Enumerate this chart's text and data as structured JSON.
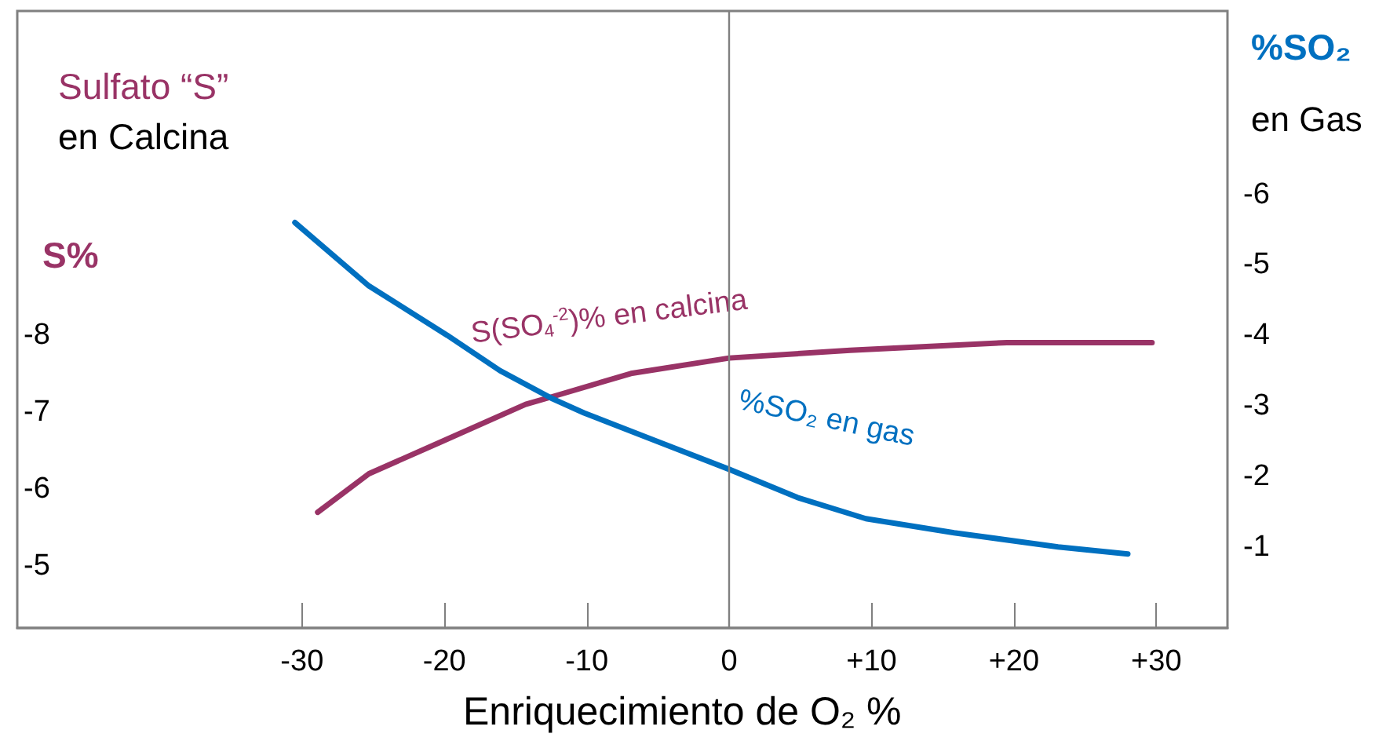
{
  "chart_data": {
    "type": "line",
    "title": "Sulfato “S”\nen Calcina",
    "xlabel": "Enriquecimiento de O₂ %",
    "ylabel": "S%",
    "y2label": "%SO₂\nen Gas",
    "xlim": [
      -50,
      35
    ],
    "xticks": [
      -30,
      -20,
      -10,
      0,
      {
        "value": 10,
        "label": "+10"
      },
      {
        "value": 20,
        "label": "+20"
      },
      {
        "value": 30,
        "label": "+30"
      }
    ],
    "ylim": [
      -4.2,
      -12.2
    ],
    "yticks": [
      -5,
      -6,
      -7,
      -8
    ],
    "y2lim": [
      0.15,
      -8.6
    ],
    "y2ticks": [
      -1,
      -2,
      -3,
      -4,
      -5,
      -6
    ],
    "series": [
      {
        "name": "S(SO$_{4}$$^{-2}$)% en calcina",
        "color": "#993366",
        "x": [
          -28.9,
          -25.3,
          -20.4,
          -14.3,
          -12.4,
          -6.9,
          0,
          8.5,
          19.5,
          29.7
        ],
        "values": [
          -5.7,
          -6.2,
          -6.6,
          -7.1,
          -7.2,
          -7.5,
          -7.7,
          -7.8,
          -7.9,
          -7.9
        ]
      },
      {
        "name": "%SO₂ en gas",
        "color": "#0070c0",
        "axis": "y2",
        "x": [
          -30.5,
          -25.3,
          -19.8,
          -16.1,
          -12.4,
          -10.2,
          -5.1,
          0,
          4.8,
          9.6,
          15.8,
          23.1,
          28
        ],
        "values": [
          -5.6,
          -4.7,
          -4.0,
          -3.5,
          -3.1,
          -2.9,
          -2.5,
          -2.1,
          -1.7,
          -1.4,
          -1.2,
          -1.0,
          -0.9
        ]
      }
    ],
    "ref_lines": [
      {
        "axis": "x",
        "value": 0,
        "color": "#808080"
      }
    ],
    "grid": false,
    "legend": false,
    "marker": "none",
    "line_style": "solid"
  }
}
